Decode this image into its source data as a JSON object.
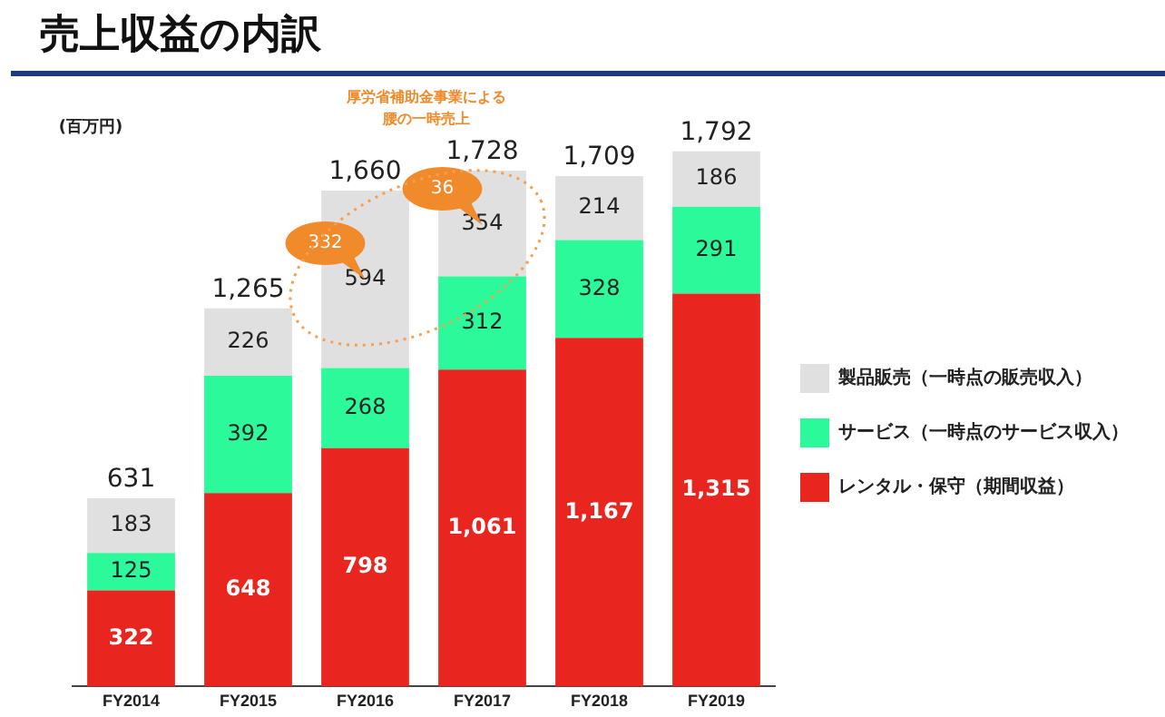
{
  "chart_data": {
    "type": "bar",
    "title": "売上収益の内訳",
    "stacked": true,
    "legend": "right",
    "tick_labels": "x",
    "grid": false,
    "categories": [
      "FY2014",
      "FY2015",
      "FY2016",
      "FY2017",
      "FY2018",
      "FY2019"
    ],
    "series": [
      {
        "name": "レンタル・保守（期間収益）",
        "color": "#e8261f",
        "values": [
          322,
          648,
          798,
          1061,
          1167,
          1315
        ],
        "value_labels": [
          "322",
          "648",
          "798",
          "1,061",
          "1,167",
          "1,315"
        ]
      },
      {
        "name": "サービス（一時点のサービス収入）",
        "color": "#2cf99a",
        "values": [
          125,
          392,
          268,
          312,
          328,
          291
        ],
        "value_labels": [
          "125",
          "392",
          "268",
          "312",
          "328",
          "291"
        ]
      },
      {
        "name": "製品販売（一時点の販売収入）",
        "color": "#e0e0e0",
        "values": [
          183,
          226,
          594,
          354,
          214,
          186
        ],
        "value_labels": [
          "183",
          "226",
          "594",
          "354",
          "214",
          "186"
        ]
      }
    ],
    "totals": [
      "631",
      "1,265",
      "1,660",
      "1,728",
      "1,709",
      "1,792"
    ],
    "annotations": [
      "(百万円)",
      "厚労省補助金事業による",
      "腰の一時売上",
      "332",
      "36"
    ]
  }
}
